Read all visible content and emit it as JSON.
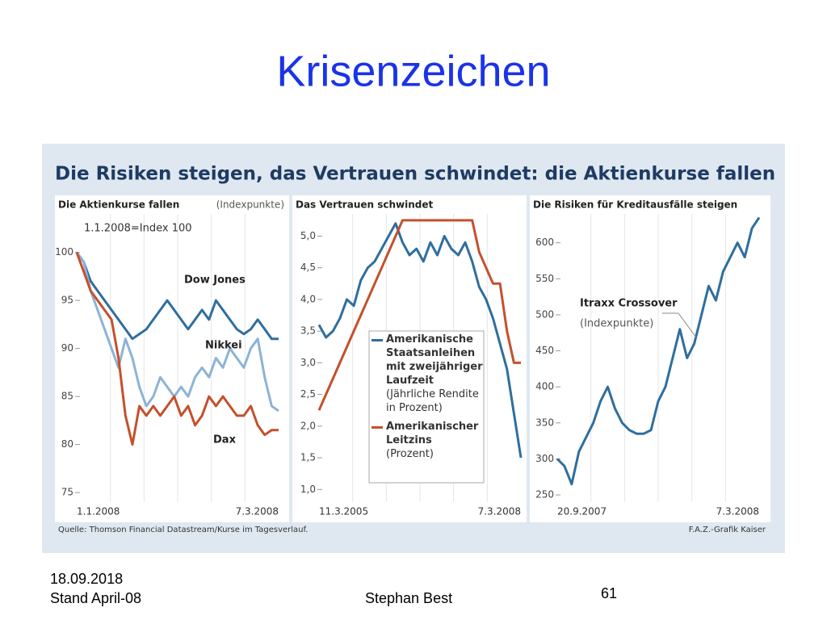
{
  "slide": {
    "title": "Krisenzeichen",
    "date": "18.09.2018",
    "status": "Stand April-08",
    "author": "Stephan Best",
    "page": "61"
  },
  "graphic": {
    "headline": "Die Risiken steigen, das Vertrauen schwindet: die Aktienkurse fallen",
    "source": "Quelle: Thomson Financial Datastream/Kurse im Tagesverlauf.",
    "credit": "F.A.Z.-Grafik Kaiser"
  },
  "chart_data": [
    {
      "type": "line",
      "title": "Die Aktienkurse fallen",
      "unit": "(Indexpunkte)",
      "annotation": "1.1.2008=Index 100",
      "categories": [
        "1.1.2008",
        null,
        null,
        null,
        null,
        null,
        null,
        null,
        null,
        null,
        null,
        null,
        null,
        null,
        null,
        null,
        null,
        null,
        null,
        null,
        null,
        null,
        null,
        null,
        null,
        null,
        null,
        null,
        null,
        "7.3.2008"
      ],
      "series": [
        {
          "name": "Dow Jones",
          "color": "#2f6e9e",
          "values": [
            100,
            99,
            97,
            96,
            95,
            94,
            93,
            92,
            91,
            91.5,
            92,
            93,
            94,
            95,
            94,
            93,
            92,
            93,
            94,
            93,
            95,
            94,
            93,
            92,
            91.5,
            92,
            93,
            92,
            91,
            91
          ]
        },
        {
          "name": "Nikkei",
          "color": "#8db3d6",
          "values": [
            100,
            99,
            96,
            94,
            92,
            90,
            88,
            91,
            89,
            86,
            84,
            85,
            87,
            86,
            85,
            86,
            85,
            87,
            88,
            87,
            89,
            88,
            90,
            89,
            88,
            90,
            91,
            87,
            84,
            83.5
          ]
        },
        {
          "name": "Dax",
          "color": "#c4502c",
          "values": [
            100,
            98,
            96,
            95,
            94,
            93,
            89,
            83,
            80,
            84,
            83,
            84,
            83,
            84,
            85,
            83,
            84,
            82,
            83,
            85,
            84,
            85,
            84,
            83,
            83,
            84,
            82,
            81,
            81.5,
            81.5
          ]
        }
      ],
      "ylim": [
        74,
        104
      ],
      "yticks": [
        75,
        80,
        85,
        90,
        95,
        100
      ],
      "grid": false
    },
    {
      "type": "line",
      "title": "Das Vertrauen schwindet",
      "categories": [
        "11.3.2005",
        null,
        null,
        null,
        null,
        null,
        null,
        null,
        null,
        null,
        null,
        null,
        null,
        null,
        null,
        null,
        null,
        null,
        null,
        null,
        null,
        null,
        null,
        null,
        null,
        null,
        null,
        null,
        null,
        "7.3.2008"
      ],
      "series": [
        {
          "name": "Amerikanische Staatsanleihen mit zweijähriger Laufzeit",
          "unit": "(Jährliche Rendite in Prozent)",
          "color": "#2f6e9e",
          "values": [
            3.6,
            3.4,
            3.5,
            3.7,
            4.0,
            3.9,
            4.3,
            4.5,
            4.6,
            4.8,
            5.0,
            5.2,
            4.9,
            4.7,
            4.8,
            4.6,
            4.9,
            4.7,
            5.0,
            4.8,
            4.7,
            4.9,
            4.6,
            4.2,
            4.0,
            3.7,
            3.3,
            2.9,
            2.2,
            1.5
          ]
        },
        {
          "name": "Amerikanischer Leitzins",
          "unit": "(Prozent)",
          "color": "#c4502c",
          "values": [
            2.25,
            2.5,
            2.75,
            3,
            3.25,
            3.5,
            3.75,
            4,
            4.25,
            4.5,
            4.75,
            5,
            5.25,
            5.25,
            5.25,
            5.25,
            5.25,
            5.25,
            5.25,
            5.25,
            5.25,
            5.25,
            5.25,
            4.75,
            4.5,
            4.25,
            4.25,
            3.5,
            3,
            3
          ]
        }
      ],
      "ylim": [
        0.8,
        5.35
      ],
      "yticks": [
        {
          "value": 1,
          "label": "1,0"
        },
        {
          "value": 1.5,
          "label": "1,5"
        },
        {
          "value": 2,
          "label": "2,0"
        },
        {
          "value": 2.5,
          "label": "2,5"
        },
        {
          "value": 3,
          "label": "3,0"
        },
        {
          "value": 3.5,
          "label": "3,5"
        },
        {
          "value": 4,
          "label": "4,0"
        },
        {
          "value": 4.5,
          "label": "4,5"
        },
        {
          "value": 5,
          "label": "5,0"
        }
      ],
      "grid": false
    },
    {
      "type": "line",
      "title": "Die Risiken für Kreditausfälle steigen",
      "categories": [
        "20.9.2007",
        null,
        null,
        null,
        null,
        null,
        null,
        null,
        null,
        null,
        null,
        null,
        null,
        null,
        null,
        null,
        null,
        null,
        null,
        null,
        null,
        null,
        null,
        null,
        null,
        null,
        null,
        null,
        "7.3.2008"
      ],
      "series": [
        {
          "name": "Itraxx Crossover",
          "unit": "(Indexpunkte)",
          "color": "#2f6e9e",
          "values": [
            300,
            290,
            265,
            310,
            330,
            350,
            380,
            400,
            370,
            350,
            340,
            335,
            335,
            340,
            380,
            400,
            440,
            480,
            440,
            460,
            500,
            540,
            520,
            560,
            580,
            600,
            580,
            620,
            635
          ]
        }
      ],
      "ylim": [
        240,
        640
      ],
      "yticks": [
        250,
        300,
        350,
        400,
        450,
        500,
        550,
        600
      ],
      "grid": false
    }
  ]
}
